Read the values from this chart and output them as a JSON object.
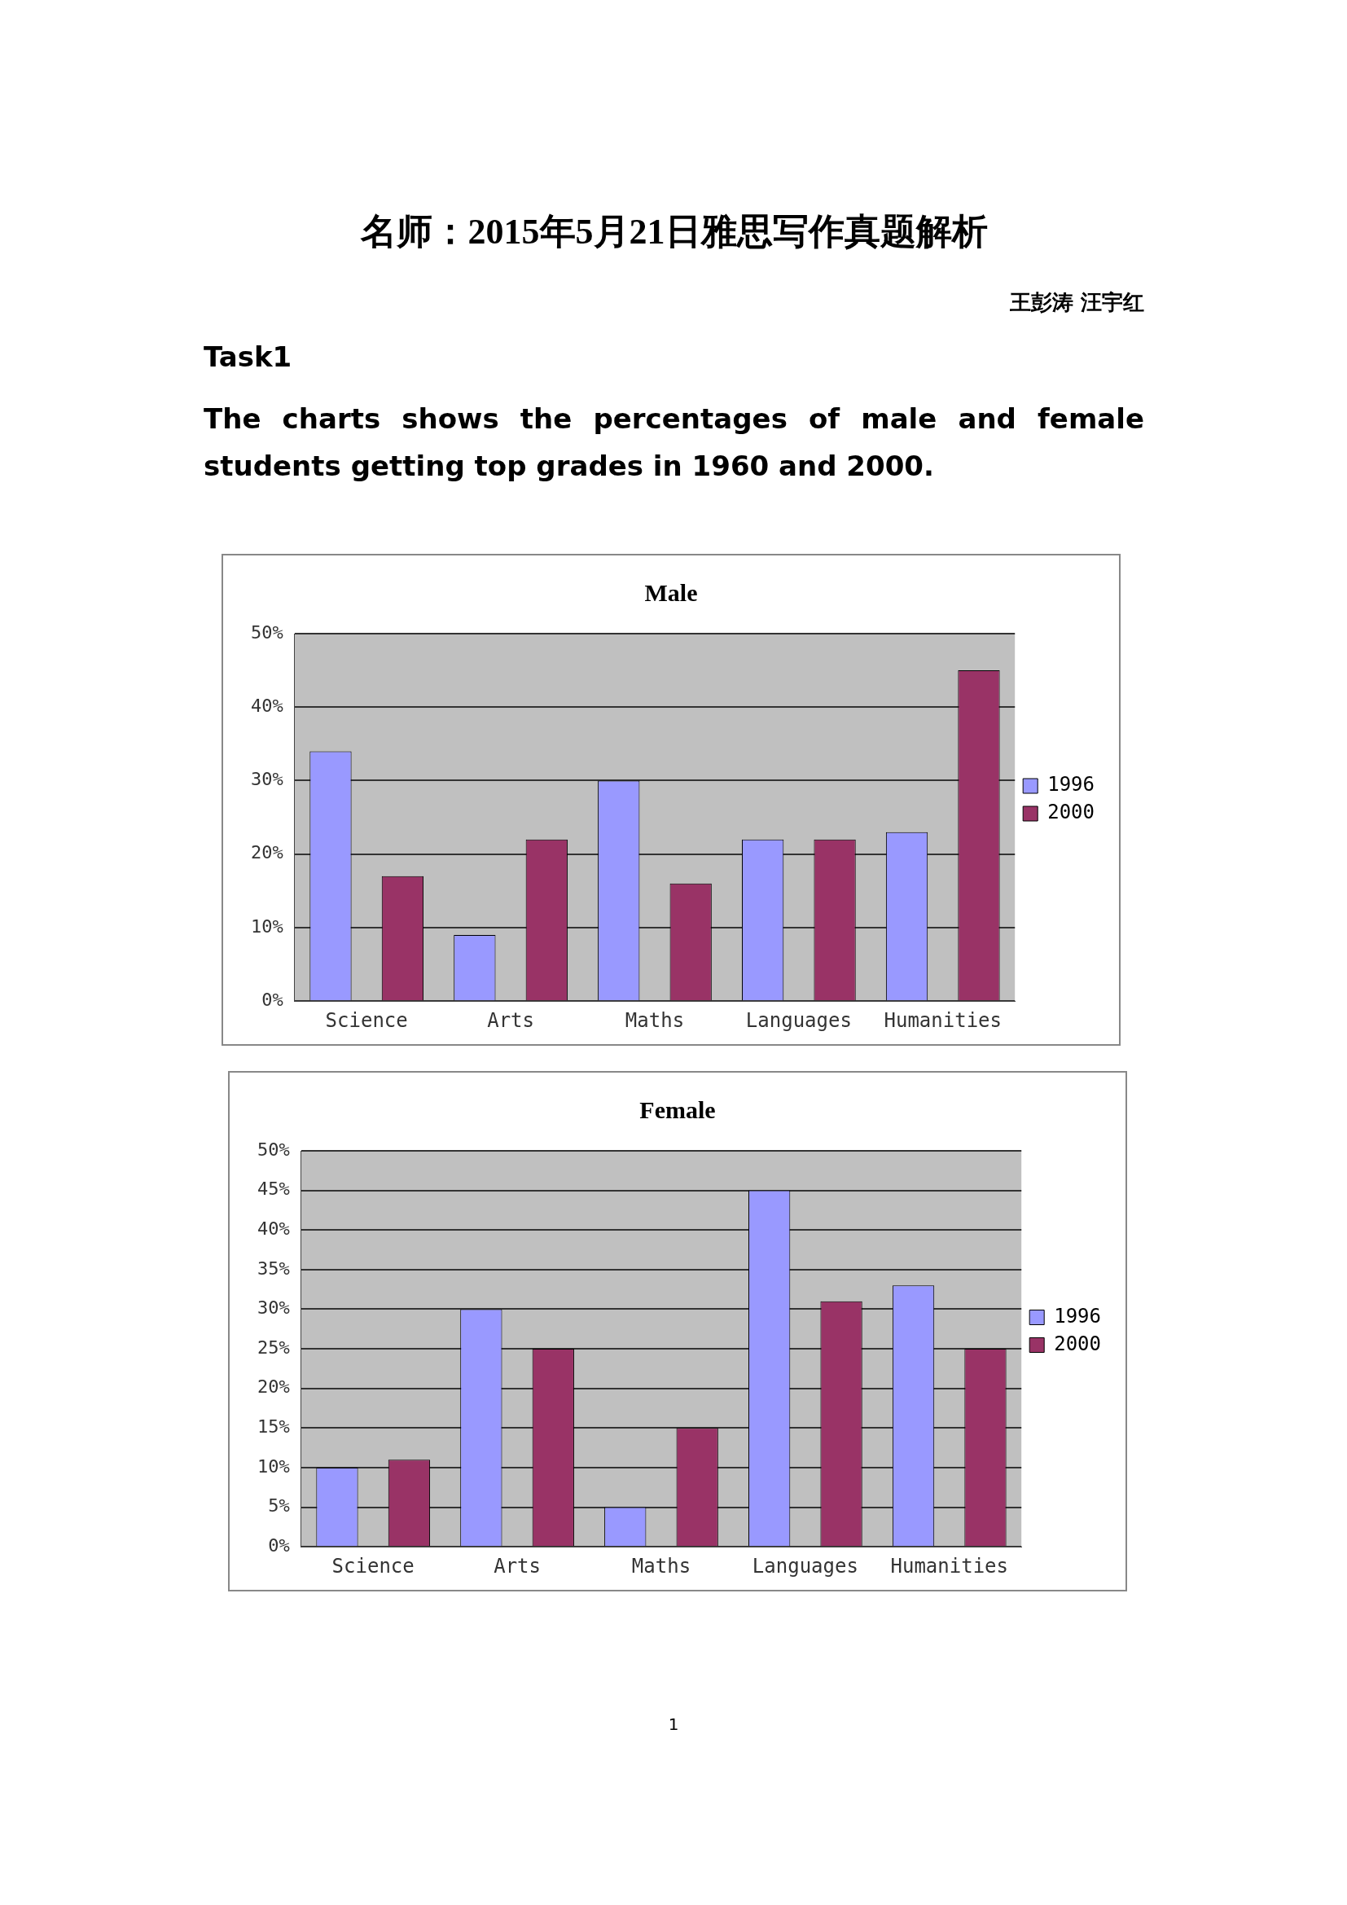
{
  "chart_data": [
    {
      "type": "bar",
      "title": "Male",
      "categories": [
        "Science",
        "Arts",
        "Maths",
        "Languages",
        "Humanities"
      ],
      "series": [
        {
          "name": "1996",
          "color": "#9999ff",
          "values": [
            34,
            9,
            30,
            22,
            23
          ]
        },
        {
          "name": "2000",
          "color": "#993366",
          "values": [
            17,
            22,
            16,
            22,
            45
          ]
        }
      ],
      "ylim": [
        0,
        50
      ],
      "yticks": [
        {
          "value": 0,
          "label": "0%"
        },
        {
          "value": 10,
          "label": "10%"
        },
        {
          "value": 20,
          "label": "20%"
        },
        {
          "value": 30,
          "label": "30%"
        },
        {
          "value": 40,
          "label": "40%"
        },
        {
          "value": 50,
          "label": "50%"
        }
      ],
      "grid": "y",
      "legend": "right",
      "annotations": [
        "名师：2015年5月21日雅思写作真题解析",
        "王彭涛 汪宇红",
        "Task1",
        "The charts shows the percentages of male and female students getting top grades in 1960 and 2000.",
        "1"
      ]
    },
    {
      "type": "bar",
      "title": "Female",
      "categories": [
        "Science",
        "Arts",
        "Maths",
        "Languages",
        "Humanities"
      ],
      "series": [
        {
          "name": "1996",
          "color": "#9999ff",
          "values": [
            10,
            30,
            5,
            45,
            33
          ]
        },
        {
          "name": "2000",
          "color": "#993366",
          "values": [
            11,
            25,
            15,
            31,
            25
          ]
        }
      ],
      "ylim": [
        0,
        50
      ],
      "yticks": [
        {
          "value": 0,
          "label": "0%"
        },
        {
          "value": 5,
          "label": "5%"
        },
        {
          "value": 10,
          "label": "10%"
        },
        {
          "value": 15,
          "label": "15%"
        },
        {
          "value": 20,
          "label": "20%"
        },
        {
          "value": 25,
          "label": "25%"
        },
        {
          "value": 30,
          "label": "30%"
        },
        {
          "value": 35,
          "label": "35%"
        },
        {
          "value": 40,
          "label": "40%"
        },
        {
          "value": 45,
          "label": "45%"
        },
        {
          "value": 50,
          "label": "50%"
        }
      ],
      "grid": "y",
      "legend": "right"
    }
  ]
}
